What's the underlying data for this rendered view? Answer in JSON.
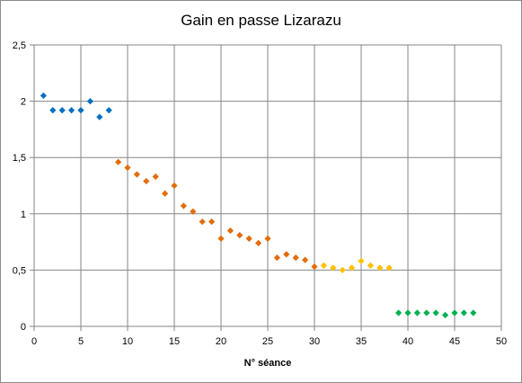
{
  "chart_data": {
    "type": "scatter",
    "title": "Gain en passe Lizarazu",
    "xlabel": "N° séance",
    "ylabel": "",
    "xlim": [
      0,
      50
    ],
    "ylim": [
      0,
      2.5
    ],
    "x_ticks": [
      "0",
      "5",
      "10",
      "15",
      "20",
      "25",
      "30",
      "35",
      "40",
      "45",
      "50"
    ],
    "y_ticks": [
      "0",
      "0,5",
      "1",
      "1,5",
      "2",
      "2,5"
    ],
    "grid": true,
    "legend": "none",
    "series": [
      {
        "color": "#0070c0",
        "x": [
          1,
          2,
          3,
          4,
          5,
          6,
          7,
          8
        ],
        "y": [
          2.05,
          1.92,
          1.92,
          1.92,
          1.92,
          2.0,
          1.86,
          1.92
        ]
      },
      {
        "color": "#e36c09",
        "x": [
          9,
          10,
          11,
          12,
          13,
          14,
          15,
          16,
          17,
          18,
          19,
          20,
          21,
          22,
          23,
          24,
          25,
          26,
          27,
          28,
          29,
          30
        ],
        "y": [
          1.46,
          1.41,
          1.35,
          1.29,
          1.33,
          1.18,
          1.25,
          1.07,
          1.02,
          0.93,
          0.93,
          0.78,
          0.85,
          0.81,
          0.78,
          0.74,
          0.78,
          0.61,
          0.64,
          0.61,
          0.59,
          0.53
        ]
      },
      {
        "color": "#ffc000",
        "x": [
          31,
          32,
          33,
          34,
          35,
          36,
          37,
          38
        ],
        "y": [
          0.54,
          0.52,
          0.5,
          0.52,
          0.58,
          0.54,
          0.52,
          0.52
        ]
      },
      {
        "color": "#00b050",
        "x": [
          39,
          40,
          41,
          42,
          43,
          44,
          45,
          46,
          47
        ],
        "y": [
          0.12,
          0.12,
          0.12,
          0.12,
          0.12,
          0.1,
          0.12,
          0.12,
          0.12
        ]
      }
    ]
  }
}
